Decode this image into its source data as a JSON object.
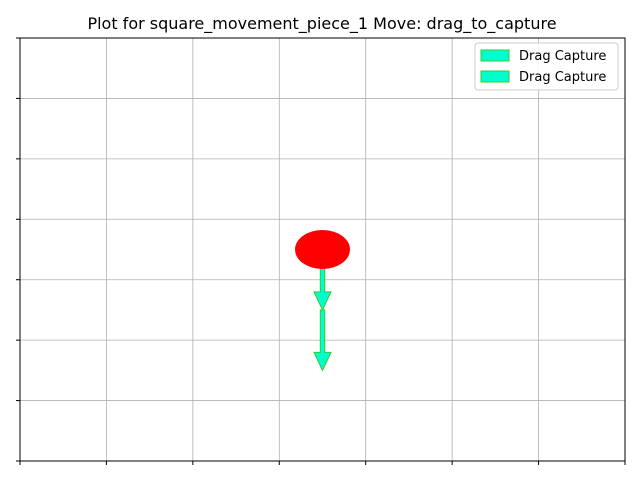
{
  "chart_data": {
    "type": "scatter",
    "title": "Plot for  square_movement_piece_1 Move: drag_to_capture",
    "xlim": [
      0,
      7
    ],
    "ylim": [
      0,
      7
    ],
    "grid": true,
    "tick_labels_visible": false,
    "legend_placement": "top-right",
    "piece": {
      "x": 3.5,
      "y": 3.5,
      "color": "#ff0000"
    },
    "arrows": [
      {
        "name": "Drag Capture",
        "from": [
          3.5,
          3.5
        ],
        "to": [
          3.5,
          2.5
        ]
      },
      {
        "name": "Drag Capture",
        "from": [
          3.5,
          2.5
        ],
        "to": [
          3.5,
          1.5
        ]
      }
    ],
    "arrow_fill": "#00ffcc",
    "arrow_edge": "#33cc33"
  }
}
